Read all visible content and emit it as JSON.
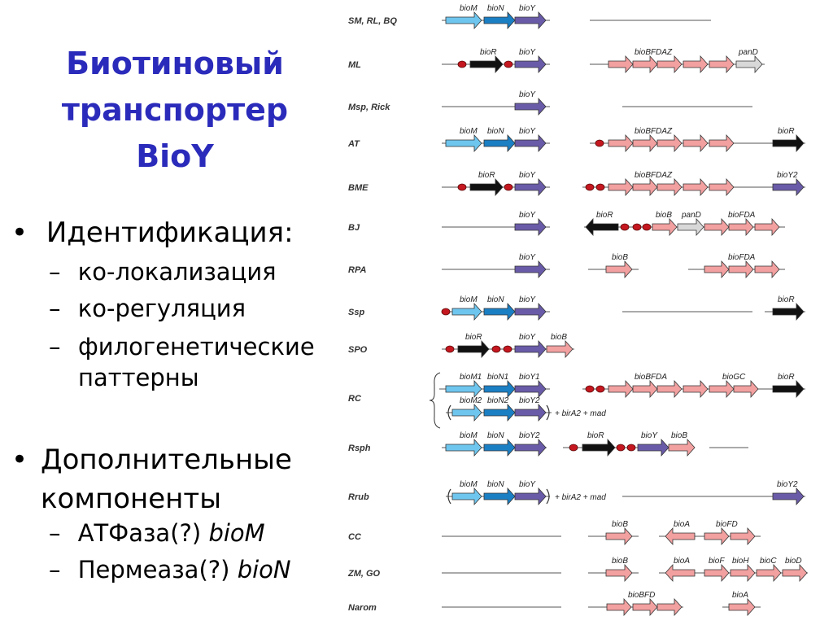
{
  "title_lines": [
    "Биотиновый",
    "транспортер",
    "BioY"
  ],
  "outline": [
    {
      "bullet": "•",
      "text": "Идентификация:"
    },
    {
      "dash": "–",
      "text": "ко-локализация"
    },
    {
      "dash": "–",
      "text": "ко-регуляция"
    },
    {
      "dash": "–",
      "text": "филогенетические паттерны"
    },
    {
      "bullet": "•",
      "text": "Дополнительные компоненты"
    },
    {
      "dash": "–",
      "text": "АТФаза(?)",
      "italic": "bioM"
    },
    {
      "dash": "–",
      "text": "Пермеаза(?)",
      "italic": "bioN"
    }
  ],
  "colors": {
    "title": "#2b2bbb",
    "bioM": "#6ec6ee",
    "bioN": "#1b7fc4",
    "bioY": "#6a5ba8",
    "bioR": "#111111",
    "bio": "#f2a0a0",
    "panD": "#d8d8d8",
    "site": "#c4171f"
  },
  "organisms": [
    "SM, RL, BQ",
    "ML",
    "Msp, Rick",
    "AT",
    "BME",
    "BJ",
    "RPA",
    "Ssp",
    "SPO",
    "RC",
    "Rsph",
    "Rrub",
    "CC",
    "ZM, GO",
    "Narom"
  ],
  "gene_labels": {
    "smrl": [
      "bioM",
      "bioN",
      "bioY"
    ],
    "ml": [
      "bioR",
      "bioY",
      "bioBFDAZ",
      "panD"
    ],
    "msp": [
      "bioY"
    ],
    "at": [
      "bioM",
      "bioN",
      "bioY",
      "bioBFDAZ",
      "bioR"
    ],
    "bme": [
      "bioR",
      "bioY",
      "bioBFDAZ",
      "bioY2"
    ],
    "bj": [
      "bioY",
      "bioR",
      "bioB",
      "panD",
      "bioFDA"
    ],
    "rpa": [
      "bioY",
      "bioB",
      "bioFDA"
    ],
    "ssp": [
      "bioM",
      "bioN",
      "bioY",
      "bioR"
    ],
    "spo": [
      "bioR",
      "bioY",
      "bioB"
    ],
    "rc1": [
      "bioM1",
      "bioN1",
      "bioY1",
      "bioBFDA",
      "bioGC",
      "bioR"
    ],
    "rc2": [
      "bioM2",
      "bioN2",
      "bioY2"
    ],
    "rsph": [
      "bioM",
      "bioN",
      "bioY2",
      "bioR",
      "bioY",
      "bioB"
    ],
    "rrub": [
      "bioM",
      "bioN",
      "bioY",
      "bioY2"
    ],
    "cc": [
      "bioB",
      "bioA",
      "bioFD"
    ],
    "zm": [
      "bioB",
      "bioA",
      "bioF",
      "bioH",
      "bioC",
      "bioD"
    ],
    "narom": [
      "bioBFD",
      "bioA"
    ]
  },
  "notes": {
    "birA2": "+ birA2 + mad"
  }
}
